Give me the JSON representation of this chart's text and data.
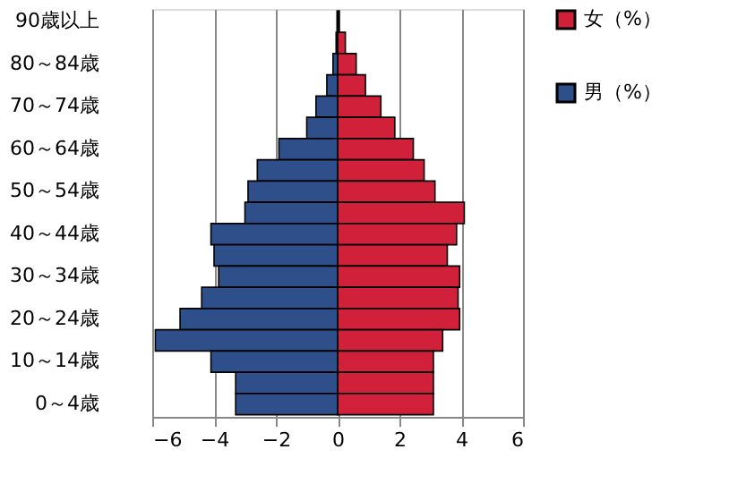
{
  "chart_data": {
    "type": "bar",
    "orientation": "horizontal",
    "stacked": true,
    "categories": [
      "90歳以上",
      null,
      "80～84歳",
      null,
      "70～74歳",
      null,
      "60～64歳",
      null,
      "50～54歳",
      null,
      "40～44歳",
      null,
      "30～34歳",
      null,
      "20～24歳",
      null,
      "10～14歳",
      null,
      "0～4歳"
    ],
    "series": [
      {
        "name": "女（%）",
        "color": "#d0203a",
        "values": [
          0.05,
          0.25,
          0.6,
          0.9,
          1.4,
          1.85,
          2.45,
          2.8,
          3.15,
          4.1,
          3.85,
          3.55,
          3.95,
          3.9,
          3.95,
          3.4,
          3.1,
          3.1,
          3.1
        ]
      },
      {
        "name": "男（%）",
        "color": "#2f4f8a",
        "values": [
          -0.02,
          -0.05,
          -0.15,
          -0.35,
          -0.7,
          -1.0,
          -1.9,
          -2.6,
          -2.9,
          -3.0,
          -4.1,
          -4.0,
          -3.85,
          -4.4,
          -5.1,
          -5.9,
          -4.1,
          -3.3,
          -3.3
        ]
      }
    ],
    "xlim": [
      -6,
      6
    ],
    "xticks": [
      -6,
      -4,
      -2,
      0,
      2,
      4,
      6
    ],
    "grid": "x",
    "legend": "right"
  }
}
